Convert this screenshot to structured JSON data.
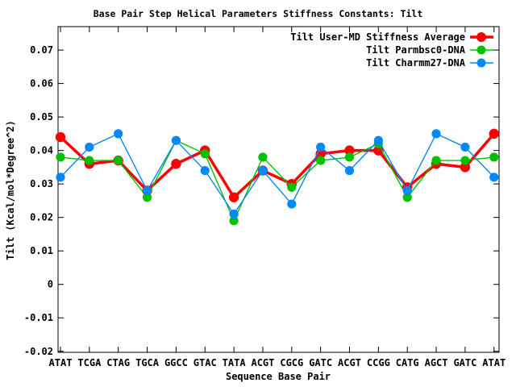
{
  "chart_data": {
    "type": "line",
    "title": "Base Pair Step Helical Parameters Stiffness Constants: Tilt",
    "xlabel": "Sequence Base Pair",
    "ylabel": "Tilt (Kcal/mol*Degree^2)",
    "categories": [
      "ATAT",
      "TCGA",
      "CTAG",
      "TGCA",
      "GGCC",
      "GTAC",
      "TATA",
      "ACGT",
      "CGCG",
      "GATC",
      "ACGT",
      "CCGG",
      "CATG",
      "AGCT",
      "GATC",
      "ATAT"
    ],
    "series": [
      {
        "name": "Tilt User-MD Stiffness Average",
        "color": "#ff0000",
        "line_width": 3.5,
        "point_radius": 6.2,
        "legend_point_radius": 6,
        "values": [
          0.044,
          0.036,
          0.037,
          0.028,
          0.036,
          0.04,
          0.026,
          0.034,
          0.03,
          0.039,
          0.04,
          0.04,
          0.029,
          0.036,
          0.035,
          0.045
        ]
      },
      {
        "name": "Tilt Parmbsc0-DNA",
        "color": "#00c000",
        "line_width": 1.4,
        "point_radius": 5.6,
        "legend_point_radius": 5.5,
        "values": [
          0.038,
          0.037,
          0.037,
          0.026,
          0.043,
          0.039,
          0.019,
          0.038,
          0.029,
          0.037,
          0.038,
          0.042,
          0.026,
          0.037,
          0.037,
          0.038
        ]
      },
      {
        "name": "Tilt Charmm27-DNA",
        "color": "#0088ff",
        "line_width": 1.4,
        "point_radius": 5.6,
        "legend_point_radius": 5.5,
        "values": [
          0.032,
          0.041,
          0.045,
          0.028,
          0.043,
          0.034,
          0.021,
          0.034,
          0.024,
          0.041,
          0.034,
          0.043,
          0.028,
          0.045,
          0.041,
          0.032
        ]
      }
    ],
    "y_ticks": [
      {
        "value": 0.07,
        "label": "0.07"
      },
      {
        "value": 0.06,
        "label": "0.06"
      },
      {
        "value": 0.05,
        "label": "0.05"
      },
      {
        "value": 0.04,
        "label": "0.04"
      },
      {
        "value": 0.03,
        "label": "0.03"
      },
      {
        "value": 0.02,
        "label": "0.02"
      },
      {
        "value": 0.01,
        "label": "0.01"
      },
      {
        "value": 0,
        "label": "0"
      },
      {
        "value": -0.01,
        "label": "-0.01"
      },
      {
        "value": -0.02,
        "label": "-0.02"
      }
    ],
    "ylim": [
      -0.0203,
      0.077
    ],
    "grid": false,
    "legend_position": "top-right-inside",
    "background_color": "#ffffff",
    "border_color": "#000000"
  }
}
